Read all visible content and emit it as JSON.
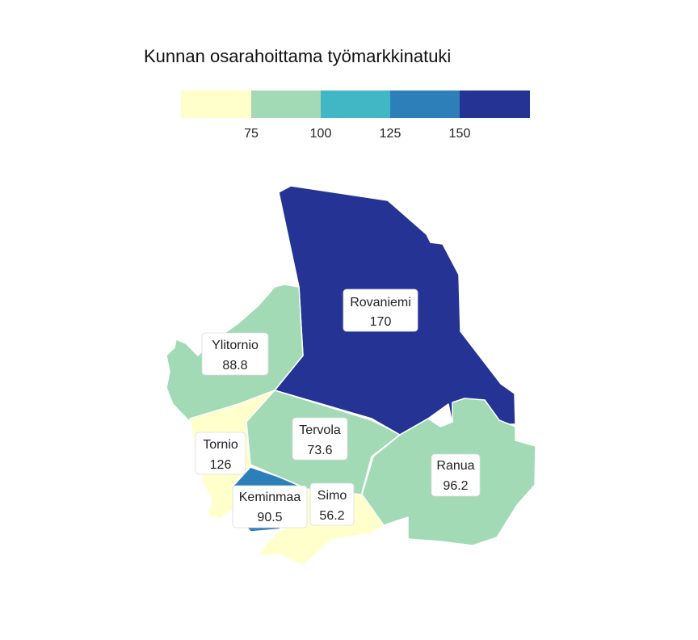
{
  "title": "Kunnan osarahoittama työmarkkinatuki",
  "legend": {
    "bins": [
      {
        "color": "#ffffcc"
      },
      {
        "color": "#a1dab4"
      },
      {
        "color": "#41b6c4"
      },
      {
        "color": "#2c7fb8"
      },
      {
        "color": "#253494"
      }
    ],
    "ticks": [
      "75",
      "100",
      "125",
      "150"
    ]
  },
  "regions": [
    {
      "id": "rovaniemi",
      "name": "Rovaniemi",
      "value": "170",
      "color": "#253494"
    },
    {
      "id": "ylitornio",
      "name": "Ylitornio",
      "value": "88.8",
      "color": "#a1dab4"
    },
    {
      "id": "tornio",
      "name": "Tornio",
      "value": "126",
      "color": "#2c7fb8"
    },
    {
      "id": "tervola",
      "name": "Tervola",
      "value": "73.6",
      "color": "#ffffcc"
    },
    {
      "id": "ranua",
      "name": "Ranua",
      "value": "96.2",
      "color": "#a1dab4"
    },
    {
      "id": "keminmaa",
      "name": "Keminmaa",
      "value": "90.5",
      "color": "#a1dab4"
    },
    {
      "id": "simo",
      "name": "Simo",
      "value": "56.2",
      "color": "#ffffcc"
    }
  ]
}
